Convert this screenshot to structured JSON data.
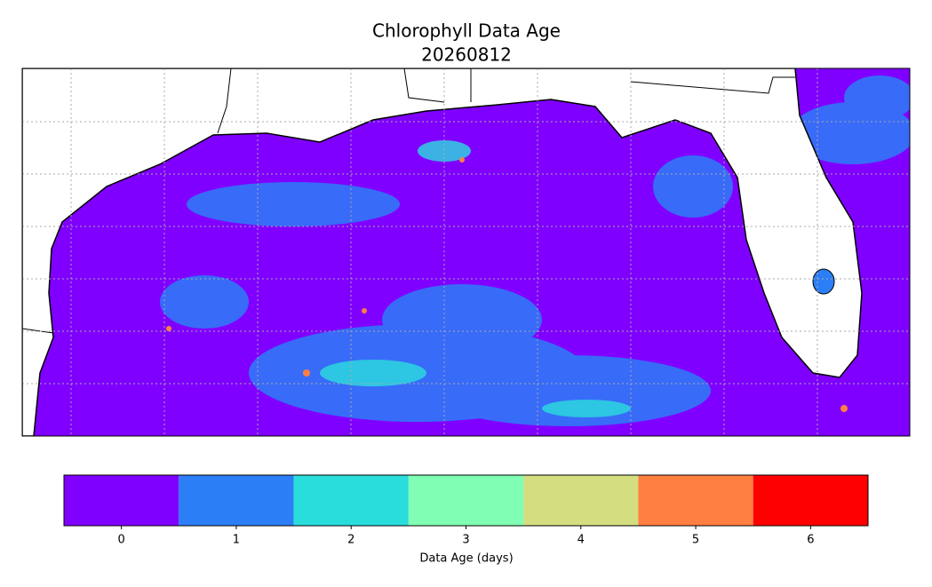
{
  "title": "Chlorophyll Data Age",
  "date": "20260812",
  "colorbar": {
    "label": "Data Age (days)",
    "lim": [
      -0.5,
      6.5
    ],
    "ticks": [
      0,
      1,
      2,
      3,
      4,
      5,
      6
    ],
    "colors": [
      "#8000ff",
      "#2c7ef7",
      "#2adddd",
      "#80ffb4",
      "#d4dd80",
      "#ff7f41",
      "#ff0000"
    ]
  }
}
